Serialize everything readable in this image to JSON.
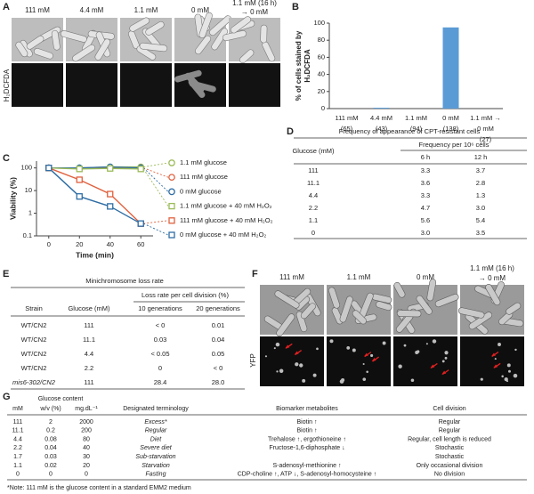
{
  "panel_labels": [
    "A",
    "B",
    "C",
    "D",
    "E",
    "F",
    "G"
  ],
  "panel_a": {
    "conditions": [
      [
        "111 mM"
      ],
      [
        "4.4 mM"
      ],
      [
        "1.1 mM"
      ],
      [
        "0 mM"
      ],
      [
        "1.1 mM (16 h)",
        "→ 0 mM"
      ]
    ],
    "stain": "H₂DCFDA"
  },
  "chart_data": [
    {
      "type": "bar",
      "ylabel": [
        "% of cells stained by",
        "H₂DCFDA"
      ],
      "categories": [
        [
          "111 mM",
          "(65)"
        ],
        [
          "4.4 mM",
          "(43)"
        ],
        [
          "1.1 mM",
          "(94)"
        ],
        [
          "0 mM",
          "(138)"
        ],
        [
          "1.1 mM →",
          "0 mM",
          "(27)"
        ]
      ],
      "values": [
        0,
        1,
        0,
        95,
        0
      ],
      "color": "#5b9bd5",
      "ylim": [
        0,
        100
      ],
      "yticks": [
        0,
        20,
        40,
        60,
        80,
        100
      ]
    },
    {
      "type": "line",
      "ylabel": "Viability (%)",
      "xlabel": "Time (min)",
      "log_y": true,
      "x": [
        0,
        20,
        40,
        60
      ],
      "xlim": [
        -8,
        68
      ],
      "xticks": [
        0,
        20,
        40,
        60
      ],
      "ylim": [
        0.1,
        200
      ],
      "yticks": [
        0.1,
        1,
        10,
        100
      ],
      "series": [
        {
          "name": "1.1 mM glucose",
          "color": "#9bbb59",
          "marker": "circle",
          "values": [
            100,
            100,
            110,
            110
          ]
        },
        {
          "name": "111 mM glucose",
          "color": "#e0603e",
          "marker": "circle",
          "values": [
            100,
            95,
            100,
            100
          ]
        },
        {
          "name": "0 mM glucose",
          "color": "#2e6da4",
          "marker": "circle",
          "values": [
            100,
            100,
            110,
            100
          ]
        },
        {
          "name": "1.1 mM glucose + 40 mM H₂O₂",
          "color": "#9bbb59",
          "marker": "square",
          "values": [
            100,
            90,
            95,
            90
          ]
        },
        {
          "name": "111 mM glucose + 40 mM H₂O₂",
          "color": "#e0603e",
          "marker": "square",
          "values": [
            100,
            30,
            7,
            0.35
          ]
        },
        {
          "name": "0 mM glucose + 40 mM H₂O₂",
          "color": "#2e6da4",
          "marker": "square",
          "values": [
            100,
            5.5,
            2,
            0.35
          ]
        }
      ]
    }
  ],
  "table_d": {
    "title": "Frequency of appearance of CPT-resistant cells",
    "columns": [
      "Glucose (mM)",
      "Frequency per 10⁶ cells",
      "6 h",
      "12 h"
    ],
    "rows": [
      [
        "111",
        "3.3",
        "3.7"
      ],
      [
        "11.1",
        "3.6",
        "2.8"
      ],
      [
        "4.4",
        "3.3",
        "1.3"
      ],
      [
        "2.2",
        "4.7",
        "3.0"
      ],
      [
        "1.1",
        "5.6",
        "5.4"
      ],
      [
        "0",
        "3.0",
        "3.5"
      ]
    ]
  },
  "table_e": {
    "title": "Minichromosome loss rate",
    "columns": [
      "Strain",
      "Glucose (mM)",
      "Loss rate per cell division (%)",
      "10 generations",
      "20 generations"
    ],
    "rows": [
      [
        "WT/CN2",
        "111",
        "< 0",
        "0.01"
      ],
      [
        "WT/CN2",
        "11.1",
        "0.03",
        "0.04"
      ],
      [
        "WT/CN2",
        "4.4",
        "< 0.05",
        "0.05"
      ],
      [
        "WT/CN2",
        "2.2",
        "0",
        "< 0"
      ],
      [
        "mis6-302/CN2",
        "111",
        "28.4",
        "28.0"
      ]
    ]
  },
  "panel_f": {
    "conditions": [
      [
        "111 mM"
      ],
      [
        "1.1 mM"
      ],
      [
        "0 mM"
      ],
      [
        "1.1 mM (16 h)",
        "→ 0 mM"
      ]
    ],
    "channel": "YFP"
  },
  "table_g": {
    "group_header": "Glucose content",
    "columns": [
      "mM",
      "w/v (%)",
      "mg.dL⁻¹",
      "Designated terminology",
      "Biomarker metabolites",
      "Cell division"
    ],
    "rows": [
      [
        "111",
        "2",
        "2000",
        "Excess*",
        "Biotin ↑",
        "Regular"
      ],
      [
        "11.1",
        "0.2",
        "200",
        "Regular",
        "Biotin ↑",
        "Regular"
      ],
      [
        "4.4",
        "0.08",
        "80",
        "Diet",
        "Trehalose ↑, ergothioneine ↑",
        "Regular, cell length is reduced"
      ],
      [
        "2.2",
        "0.04",
        "40",
        "Severe diet",
        "Fructose-1,6-diphosphate ↓",
        "Stochastic"
      ],
      [
        "1.7",
        "0.03",
        "30",
        "Sub-starvation",
        null,
        "Stochastic"
      ],
      [
        "1.1",
        "0.02",
        "20",
        "Starvation",
        "S-adenosyl-methionine ↑",
        "Only occasional division"
      ],
      [
        "0",
        "0",
        "0",
        "Fasting",
        "CDP-choline ↑, ATP ↓, S-adenosyl-homocysteine ↑",
        "No division"
      ]
    ],
    "note": "*Note: 111 mM is the glucose content in a standard EMM2 medium"
  }
}
